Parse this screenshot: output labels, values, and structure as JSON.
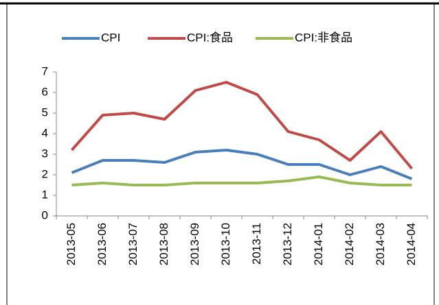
{
  "chart_data": {
    "type": "line",
    "categories": [
      "2013-05",
      "2013-06",
      "2013-07",
      "2013-08",
      "2013-09",
      "2013-10",
      "2013-11",
      "2013-12",
      "2014-01",
      "2014-02",
      "2014-03",
      "2014-04"
    ],
    "series": [
      {
        "name": "CPI",
        "color": "#4a7ebb",
        "values": [
          2.1,
          2.7,
          2.7,
          2.6,
          3.1,
          3.2,
          3.0,
          2.5,
          2.5,
          2.0,
          2.4,
          1.8
        ]
      },
      {
        "name": "CPI:食品",
        "color": "#be4b48",
        "values": [
          3.2,
          4.9,
          5.0,
          4.7,
          6.1,
          6.5,
          5.9,
          4.1,
          3.7,
          2.7,
          4.1,
          2.3
        ]
      },
      {
        "name": "CPI:非食品",
        "color": "#98b954",
        "values": [
          1.5,
          1.6,
          1.5,
          1.5,
          1.6,
          1.6,
          1.6,
          1.7,
          1.9,
          1.6,
          1.5,
          1.5
        ]
      }
    ],
    "ylim": [
      0,
      7
    ],
    "yticks": [
      0,
      1,
      2,
      3,
      4,
      5,
      6,
      7
    ],
    "grid": false,
    "legend": "top"
  }
}
